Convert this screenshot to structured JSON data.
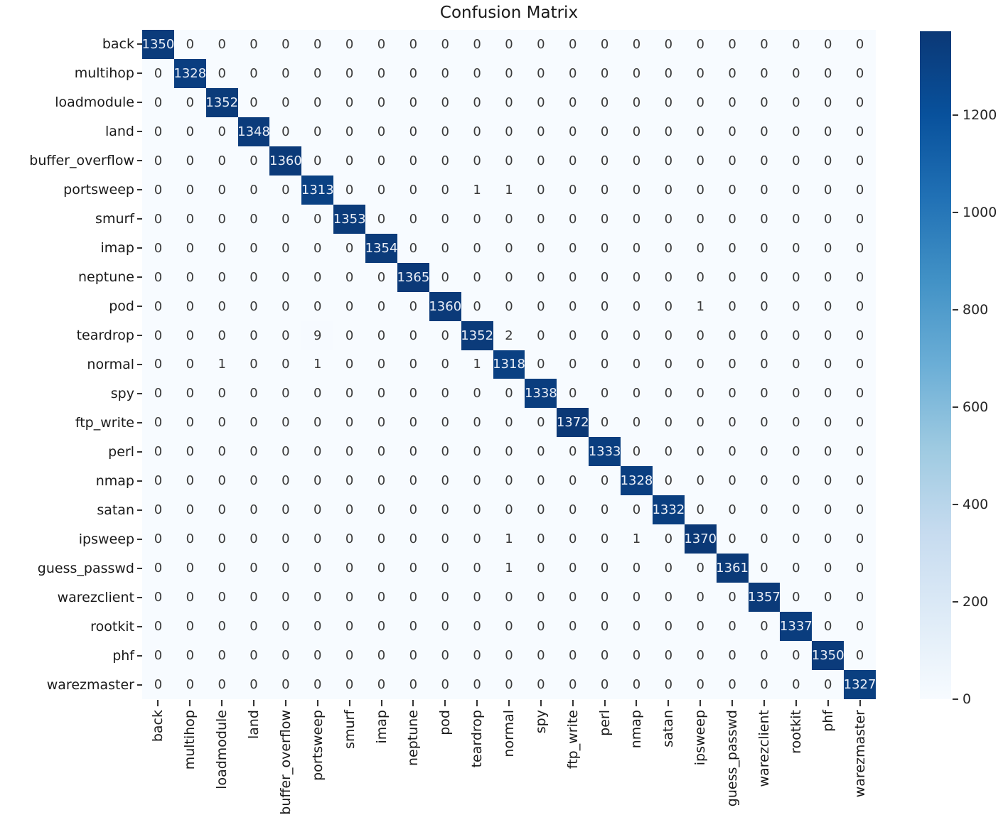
{
  "title": "Confusion Matrix",
  "chart_data": {
    "type": "heatmap",
    "title": "Confusion Matrix",
    "x_labels": [
      "back",
      "multihop",
      "loadmodule",
      "land",
      "buffer_overflow",
      "portsweep",
      "smurf",
      "imap",
      "neptune",
      "pod",
      "teardrop",
      "normal",
      "spy",
      "ftp_write",
      "perl",
      "nmap",
      "satan",
      "ipsweep",
      "guess_passwd",
      "warezclient",
      "rootkit",
      "phf",
      "warezmaster"
    ],
    "y_labels": [
      "back",
      "multihop",
      "loadmodule",
      "land",
      "buffer_overflow",
      "portsweep",
      "smurf",
      "imap",
      "neptune",
      "pod",
      "teardrop",
      "normal",
      "spy",
      "ftp_write",
      "perl",
      "nmap",
      "satan",
      "ipsweep",
      "guess_passwd",
      "warezclient",
      "rootkit",
      "phf",
      "warezmaster"
    ],
    "matrix": [
      [
        1350,
        0,
        0,
        0,
        0,
        0,
        0,
        0,
        0,
        0,
        0,
        0,
        0,
        0,
        0,
        0,
        0,
        0,
        0,
        0,
        0,
        0,
        0
      ],
      [
        0,
        1328,
        0,
        0,
        0,
        0,
        0,
        0,
        0,
        0,
        0,
        0,
        0,
        0,
        0,
        0,
        0,
        0,
        0,
        0,
        0,
        0,
        0
      ],
      [
        0,
        0,
        1352,
        0,
        0,
        0,
        0,
        0,
        0,
        0,
        0,
        0,
        0,
        0,
        0,
        0,
        0,
        0,
        0,
        0,
        0,
        0,
        0
      ],
      [
        0,
        0,
        0,
        1348,
        0,
        0,
        0,
        0,
        0,
        0,
        0,
        0,
        0,
        0,
        0,
        0,
        0,
        0,
        0,
        0,
        0,
        0,
        0
      ],
      [
        0,
        0,
        0,
        0,
        1360,
        0,
        0,
        0,
        0,
        0,
        0,
        0,
        0,
        0,
        0,
        0,
        0,
        0,
        0,
        0,
        0,
        0,
        0
      ],
      [
        0,
        0,
        0,
        0,
        0,
        1313,
        0,
        0,
        0,
        0,
        1,
        1,
        0,
        0,
        0,
        0,
        0,
        0,
        0,
        0,
        0,
        0,
        0
      ],
      [
        0,
        0,
        0,
        0,
        0,
        0,
        1353,
        0,
        0,
        0,
        0,
        0,
        0,
        0,
        0,
        0,
        0,
        0,
        0,
        0,
        0,
        0,
        0
      ],
      [
        0,
        0,
        0,
        0,
        0,
        0,
        0,
        1354,
        0,
        0,
        0,
        0,
        0,
        0,
        0,
        0,
        0,
        0,
        0,
        0,
        0,
        0,
        0
      ],
      [
        0,
        0,
        0,
        0,
        0,
        0,
        0,
        0,
        1365,
        0,
        0,
        0,
        0,
        0,
        0,
        0,
        0,
        0,
        0,
        0,
        0,
        0,
        0
      ],
      [
        0,
        0,
        0,
        0,
        0,
        0,
        0,
        0,
        0,
        1360,
        0,
        0,
        0,
        0,
        0,
        0,
        0,
        1,
        0,
        0,
        0,
        0,
        0
      ],
      [
        0,
        0,
        0,
        0,
        0,
        9,
        0,
        0,
        0,
        0,
        1352,
        2,
        0,
        0,
        0,
        0,
        0,
        0,
        0,
        0,
        0,
        0,
        0
      ],
      [
        0,
        0,
        1,
        0,
        0,
        1,
        0,
        0,
        0,
        0,
        1,
        1318,
        0,
        0,
        0,
        0,
        0,
        0,
        0,
        0,
        0,
        0,
        0
      ],
      [
        0,
        0,
        0,
        0,
        0,
        0,
        0,
        0,
        0,
        0,
        0,
        0,
        1338,
        0,
        0,
        0,
        0,
        0,
        0,
        0,
        0,
        0,
        0
      ],
      [
        0,
        0,
        0,
        0,
        0,
        0,
        0,
        0,
        0,
        0,
        0,
        0,
        0,
        1372,
        0,
        0,
        0,
        0,
        0,
        0,
        0,
        0,
        0
      ],
      [
        0,
        0,
        0,
        0,
        0,
        0,
        0,
        0,
        0,
        0,
        0,
        0,
        0,
        0,
        1333,
        0,
        0,
        0,
        0,
        0,
        0,
        0,
        0
      ],
      [
        0,
        0,
        0,
        0,
        0,
        0,
        0,
        0,
        0,
        0,
        0,
        0,
        0,
        0,
        0,
        1328,
        0,
        0,
        0,
        0,
        0,
        0,
        0
      ],
      [
        0,
        0,
        0,
        0,
        0,
        0,
        0,
        0,
        0,
        0,
        0,
        0,
        0,
        0,
        0,
        0,
        1332,
        0,
        0,
        0,
        0,
        0,
        0
      ],
      [
        0,
        0,
        0,
        0,
        0,
        0,
        0,
        0,
        0,
        0,
        0,
        1,
        0,
        0,
        0,
        1,
        0,
        1370,
        0,
        0,
        0,
        0,
        0
      ],
      [
        0,
        0,
        0,
        0,
        0,
        0,
        0,
        0,
        0,
        0,
        0,
        1,
        0,
        0,
        0,
        0,
        0,
        0,
        1361,
        0,
        0,
        0,
        0
      ],
      [
        0,
        0,
        0,
        0,
        0,
        0,
        0,
        0,
        0,
        0,
        0,
        0,
        0,
        0,
        0,
        0,
        0,
        0,
        0,
        1357,
        0,
        0,
        0
      ],
      [
        0,
        0,
        0,
        0,
        0,
        0,
        0,
        0,
        0,
        0,
        0,
        0,
        0,
        0,
        0,
        0,
        0,
        0,
        0,
        0,
        1337,
        0,
        0
      ],
      [
        0,
        0,
        0,
        0,
        0,
        0,
        0,
        0,
        0,
        0,
        0,
        0,
        0,
        0,
        0,
        0,
        0,
        0,
        0,
        0,
        0,
        1350,
        0
      ],
      [
        0,
        0,
        0,
        0,
        0,
        0,
        0,
        0,
        0,
        0,
        0,
        0,
        0,
        0,
        0,
        0,
        0,
        0,
        0,
        0,
        0,
        0,
        1327
      ]
    ],
    "colorbar": {
      "min": 0,
      "max": 1372,
      "tick_values": [
        0,
        200,
        400,
        600,
        800,
        1000,
        1200
      ],
      "colormap": "Blues",
      "legend_position": "right"
    },
    "colors": {
      "cmap_low": "#f7fbff",
      "cmap_high": "#0b3876",
      "annot_dark": "#3a3a3a",
      "annot_light": "#e9eef7",
      "tick_color": "#333333",
      "label_color": "#1a1a1a",
      "title_color": "#1a1a1a"
    },
    "grid": false
  }
}
